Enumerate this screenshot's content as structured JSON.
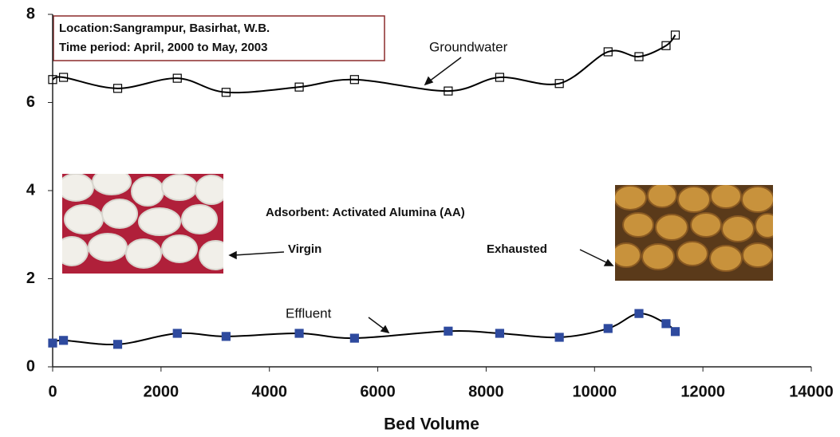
{
  "chart_data": {
    "type": "line",
    "x_label": "Bed Volume",
    "x": [
      0,
      200,
      1200,
      2300,
      3200,
      4550,
      5570,
      7300,
      8250,
      9350,
      10250,
      10820,
      11320,
      11490
    ],
    "series": [
      {
        "name": "Groundwater",
        "color": "#000000",
        "marker_fill": "none",
        "values": [
          6.52,
          6.57,
          6.32,
          6.55,
          6.23,
          6.35,
          6.52,
          6.26,
          6.57,
          6.43,
          7.15,
          7.04,
          7.29,
          7.53
        ]
      },
      {
        "name": "Effluent",
        "color": "#000000",
        "marker_fill": "#2e4a9e",
        "values": [
          0.54,
          0.6,
          0.51,
          0.76,
          0.69,
          0.76,
          0.65,
          0.81,
          0.76,
          0.67,
          0.87,
          1.21,
          0.98,
          0.8
        ]
      }
    ],
    "xlim": [
      0,
      14000
    ],
    "xticks": [
      0,
      2000,
      4000,
      6000,
      8000,
      10000,
      12000,
      14000
    ],
    "ylim": [
      0,
      8
    ],
    "yticks": [
      0,
      2,
      4,
      6,
      8
    ],
    "grid": false,
    "info_box": [
      "Location:Sangrampur, Basirhat, W.B.",
      "Time period: April, 2000 to May, 2003"
    ],
    "adsorbent_label": "Adsorbent: Activated Alumina (AA)",
    "virgin_label": "Virgin",
    "exhausted_label": "Exhausted"
  }
}
